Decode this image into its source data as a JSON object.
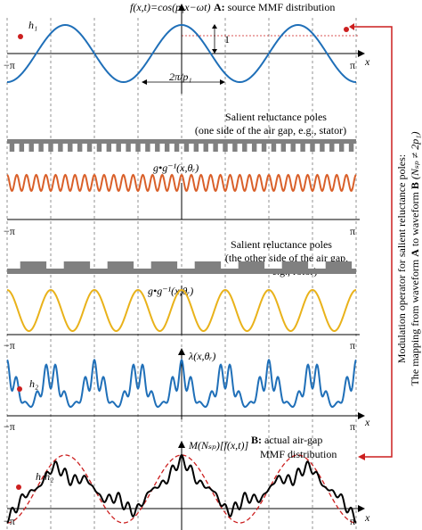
{
  "colors": {
    "blue": "#1f6fb8",
    "orange": "#d9602a",
    "gold": "#e9b21a",
    "gray": "#808080",
    "black": "#000000",
    "red": "#cc1f1f",
    "grid": "#666666"
  },
  "p1": 3,
  "poles_stator_count": 36,
  "poles_rotor_count": 8,
  "panel1": {
    "formula": "f(x,t)=cos(p₁x−ωt)",
    "title_bold": "A:",
    "title_rest": " source MMF distribution",
    "amp_label": "1",
    "period_label": "2π/p₁",
    "h_label": "h₁",
    "tick_left": "−π",
    "tick_right": "π",
    "axis": "x"
  },
  "stator": {
    "line1": "Salient reluctance poles",
    "line2": "(one side of the air gap, e.g., stator)"
  },
  "panel2": {
    "formula": "g•g⁻¹(x,θᵣ)"
  },
  "rotor": {
    "line1": "Salient reluctance poles",
    "line2": "(the other side of the air gap,",
    "line3": "e.g., rotor)",
    "tick_left": "−π",
    "tick_right": "π"
  },
  "panel3": {
    "formula": "g•g⁻¹(x,θᵣ)",
    "tick_left": "−π",
    "tick_right": "π"
  },
  "panel4": {
    "formula": "λ(x,θᵣ)",
    "h_label": "h₂",
    "tick_left": "−π",
    "tick_right": "π",
    "axis": "x"
  },
  "panel5": {
    "formula": "M(Nₛₚ)[f(x,t)]",
    "title_bold": "B:",
    "title_rest": " actual air-gap",
    "title_line2": "MMF distribution",
    "h_label": "h₁h₂",
    "tick_left": "−π",
    "tick_right": "π",
    "axis": "x"
  },
  "side": {
    "line1": "Modulation operator for salient reluctance poles:",
    "line2_pre": "The mapping from waveform ",
    "line2_A": "A",
    "line2_mid": " to waveform ",
    "line2_B": "B",
    "line2_cond": " (Nₛₚ ≠ 2p₁)"
  }
}
